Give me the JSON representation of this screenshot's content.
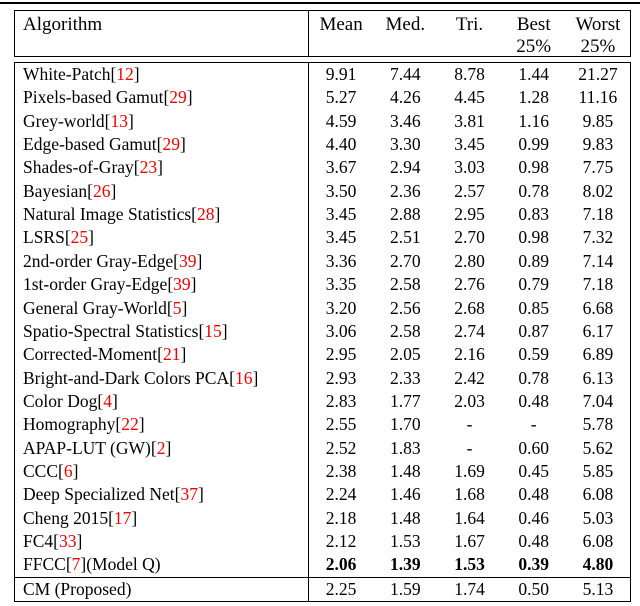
{
  "colors": {
    "citation_red": "#ee0000",
    "text": "#000000",
    "background": "#ffffff",
    "rule": "#000000"
  },
  "header": {
    "algorithm_label": "Algorithm",
    "metric_columns": [
      {
        "line1": "Mean",
        "line2": ""
      },
      {
        "line1": "Med.",
        "line2": ""
      },
      {
        "line1": "Tri.",
        "line2": ""
      },
      {
        "line1": "Best",
        "line2": "25%"
      },
      {
        "line1": "Worst",
        "line2": "25%"
      }
    ]
  },
  "rows": [
    {
      "name": "White-Patch ",
      "cite": "12",
      "suffix": "",
      "bold": false,
      "values": [
        "9.91",
        "7.44",
        "8.78",
        "1.44",
        "21.27"
      ]
    },
    {
      "name": "Pixels-based Gamut ",
      "cite": "29",
      "suffix": "",
      "bold": false,
      "values": [
        "5.27",
        "4.26",
        "4.45",
        "1.28",
        "11.16"
      ]
    },
    {
      "name": "Grey-world ",
      "cite": "13",
      "suffix": "",
      "bold": false,
      "values": [
        "4.59",
        "3.46",
        "3.81",
        "1.16",
        "9.85"
      ]
    },
    {
      "name": "Edge-based Gamut ",
      "cite": "29",
      "suffix": "",
      "bold": false,
      "values": [
        "4.40",
        "3.30",
        "3.45",
        "0.99",
        "9.83"
      ]
    },
    {
      "name": "Shades-of-Gray ",
      "cite": "23",
      "suffix": "",
      "bold": false,
      "values": [
        "3.67",
        "2.94",
        "3.03",
        "0.98",
        "7.75"
      ]
    },
    {
      "name": "Bayesian ",
      "cite": "26",
      "suffix": "",
      "bold": false,
      "values": [
        "3.50",
        "2.36",
        "2.57",
        "0.78",
        "8.02"
      ]
    },
    {
      "name": "Natural Image Statistics ",
      "cite": "28",
      "suffix": "",
      "bold": false,
      "values": [
        "3.45",
        "2.88",
        "2.95",
        "0.83",
        "7.18"
      ]
    },
    {
      "name": "LSRS ",
      "cite": "25",
      "suffix": "",
      "bold": false,
      "values": [
        "3.45",
        "2.51",
        "2.70",
        "0.98",
        "7.32"
      ]
    },
    {
      "name": "2nd-order Gray-Edge ",
      "cite": "39",
      "suffix": "",
      "bold": false,
      "values": [
        "3.36",
        "2.70",
        "2.80",
        "0.89",
        "7.14"
      ]
    },
    {
      "name": "1st-order Gray-Edge ",
      "cite": "39",
      "suffix": "",
      "bold": false,
      "values": [
        "3.35",
        "2.58",
        "2.76",
        "0.79",
        "7.18"
      ]
    },
    {
      "name": "General Gray-World ",
      "cite": "5",
      "suffix": "",
      "bold": false,
      "values": [
        "3.20",
        "2.56",
        "2.68",
        "0.85",
        "6.68"
      ]
    },
    {
      "name": "Spatio-Spectral Statistics ",
      "cite": "15",
      "suffix": "",
      "bold": false,
      "values": [
        "3.06",
        "2.58",
        "2.74",
        "0.87",
        "6.17"
      ]
    },
    {
      "name": "Corrected-Moment ",
      "cite": "21",
      "suffix": "",
      "bold": false,
      "values": [
        "2.95",
        "2.05",
        "2.16",
        "0.59",
        "6.89"
      ]
    },
    {
      "name": "Bright-and-Dark Colors PCA ",
      "cite": "16",
      "suffix": "",
      "bold": false,
      "values": [
        "2.93",
        "2.33",
        "2.42",
        "0.78",
        "6.13"
      ]
    },
    {
      "name": "Color Dog ",
      "cite": "4",
      "suffix": "",
      "bold": false,
      "values": [
        "2.83",
        "1.77",
        "2.03",
        "0.48",
        "7.04"
      ]
    },
    {
      "name": "Homography ",
      "cite": "22",
      "suffix": "",
      "bold": false,
      "values": [
        "2.55",
        "1.70",
        "-",
        "-",
        "5.78"
      ]
    },
    {
      "name": "APAP-LUT (GW) ",
      "cite": "2",
      "suffix": "",
      "bold": false,
      "values": [
        "2.52",
        "1.83",
        "-",
        "0.60",
        "5.62"
      ]
    },
    {
      "name": "CCC ",
      "cite": "6",
      "suffix": "",
      "bold": false,
      "values": [
        "2.38",
        "1.48",
        "1.69",
        "0.45",
        "5.85"
      ]
    },
    {
      "name": "Deep Specialized Net ",
      "cite": "37",
      "suffix": "",
      "bold": false,
      "values": [
        "2.24",
        "1.46",
        "1.68",
        "0.48",
        "6.08"
      ]
    },
    {
      "name": "Cheng 2015 ",
      "cite": "17",
      "suffix": "",
      "bold": false,
      "values": [
        "2.18",
        "1.48",
        "1.64",
        "0.46",
        "5.03"
      ]
    },
    {
      "name": "FC4 ",
      "cite": "33",
      "suffix": "",
      "bold": false,
      "values": [
        "2.12",
        "1.53",
        "1.67",
        "0.48",
        "6.08"
      ]
    },
    {
      "name": "FFCC ",
      "cite": "7",
      "suffix": " (Model Q)",
      "bold": true,
      "values": [
        "2.06",
        "1.39",
        "1.53",
        "0.39",
        "4.80"
      ]
    }
  ],
  "footer_row": {
    "name": "CM (Proposed)",
    "cite": null,
    "suffix": "",
    "bold": false,
    "values": [
      "2.25",
      "1.59",
      "1.74",
      "0.50",
      "5.13"
    ]
  }
}
